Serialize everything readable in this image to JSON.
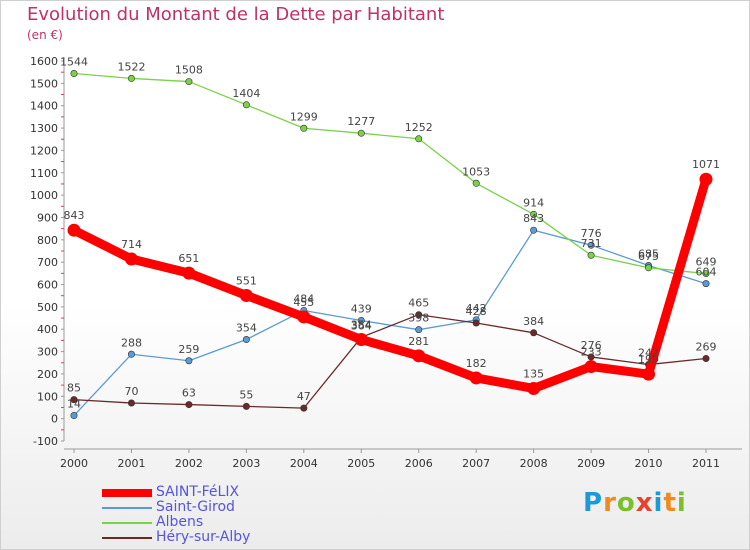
{
  "title": "Evolution du Montant de la Dette par Habitant",
  "unit": "(en €)",
  "logo": {
    "text": "Proxiti",
    "colors": [
      "#1a9bd7",
      "#f08a1c",
      "#7bbf2a",
      "#e8412c",
      "#1a9bd7",
      "#f08a1c",
      "#7bbf2a"
    ]
  },
  "chart_data": {
    "type": "line",
    "title": "Evolution du Montant de la Dette par Habitant",
    "ylabel": "(en €)",
    "xlabel": "",
    "x": [
      "2000",
      "2001",
      "2002",
      "2003",
      "2004",
      "2005",
      "2006",
      "2007",
      "2008",
      "2009",
      "2010",
      "2011"
    ],
    "ylim": [
      -100,
      1600
    ],
    "yticks": [
      -100,
      0,
      100,
      200,
      300,
      400,
      500,
      600,
      700,
      800,
      900,
      1000,
      1100,
      1200,
      1300,
      1400,
      1500,
      1600
    ],
    "grid": false,
    "legend_position": "bottom-left",
    "series": [
      {
        "name": "SAINT-FéLIX",
        "color": "#ff0000",
        "values": [
          843,
          714,
          651,
          551,
          455,
          354,
          281,
          182,
          135,
          233,
          199,
          1071
        ]
      },
      {
        "name": "Saint-Girod",
        "color": "#5b9bd5",
        "values": [
          14,
          288,
          259,
          354,
          484,
          439,
          398,
          442,
          843,
          776,
          685,
          604
        ]
      },
      {
        "name": "Albens",
        "color": "#7bd148",
        "values": [
          1544,
          1522,
          1508,
          1404,
          1299,
          1277,
          1252,
          1053,
          914,
          731,
          675,
          649
        ]
      },
      {
        "name": "Héry-sur-Alby",
        "color": "#6b2a2a",
        "values": [
          85,
          70,
          63,
          55,
          47,
          364,
          465,
          428,
          384,
          276,
          242,
          269
        ]
      }
    ]
  }
}
